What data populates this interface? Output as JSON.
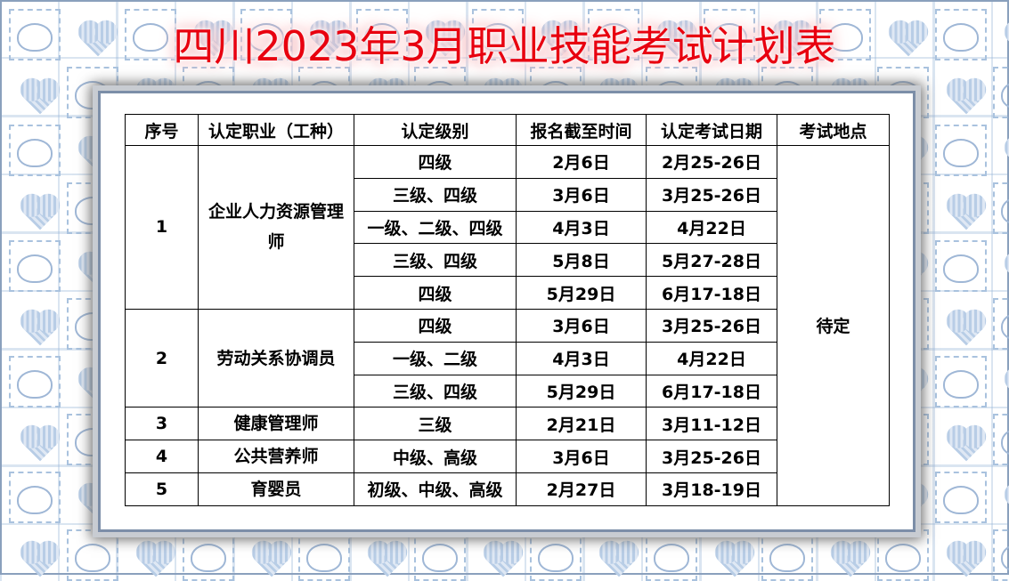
{
  "title": "四川2023年3月职业技能考试计划表",
  "headers": [
    "序号",
    "认定职业（工种）",
    "认定级别",
    "报名截至时间",
    "认定考试日期",
    "考试地点"
  ],
  "groups": [
    {
      "no": "1",
      "occupation": "企业人力资源管理师",
      "rows": [
        {
          "level": "四级",
          "deadline": "2月6日",
          "exam": "2月25-26日"
        },
        {
          "level": "三级、四级",
          "deadline": "3月6日",
          "exam": "3月25-26日"
        },
        {
          "level": "一级、二级、四级",
          "deadline": "4月3日",
          "exam": "4月22日"
        },
        {
          "level": "三级、四级",
          "deadline": "5月8日",
          "exam": "5月27-28日"
        },
        {
          "level": "四级",
          "deadline": "5月29日",
          "exam": "6月17-18日"
        }
      ]
    },
    {
      "no": "2",
      "occupation": "劳动关系协调员",
      "rows": [
        {
          "level": "四级",
          "deadline": "3月6日",
          "exam": "3月25-26日"
        },
        {
          "level": "一级、二级",
          "deadline": "4月3日",
          "exam": "4月22日"
        },
        {
          "level": "三级、四级",
          "deadline": "5月29日",
          "exam": "6月17-18日"
        }
      ]
    },
    {
      "no": "3",
      "occupation": "健康管理师",
      "rows": [
        {
          "level": "三级",
          "deadline": "2月21日",
          "exam": "3月11-12日"
        }
      ]
    },
    {
      "no": "4",
      "occupation": "公共营养师",
      "rows": [
        {
          "level": "中级、高级",
          "deadline": "3月6日",
          "exam": "3月25-26日"
        }
      ]
    },
    {
      "no": "5",
      "occupation": "育婴员",
      "rows": [
        {
          "level": "初级、中级、高级",
          "deadline": "2月27日",
          "exam": "3月18-19日"
        }
      ]
    }
  ],
  "location": "待定",
  "colors": {
    "title": "#e8000f",
    "pattern": "#a9c2de"
  }
}
